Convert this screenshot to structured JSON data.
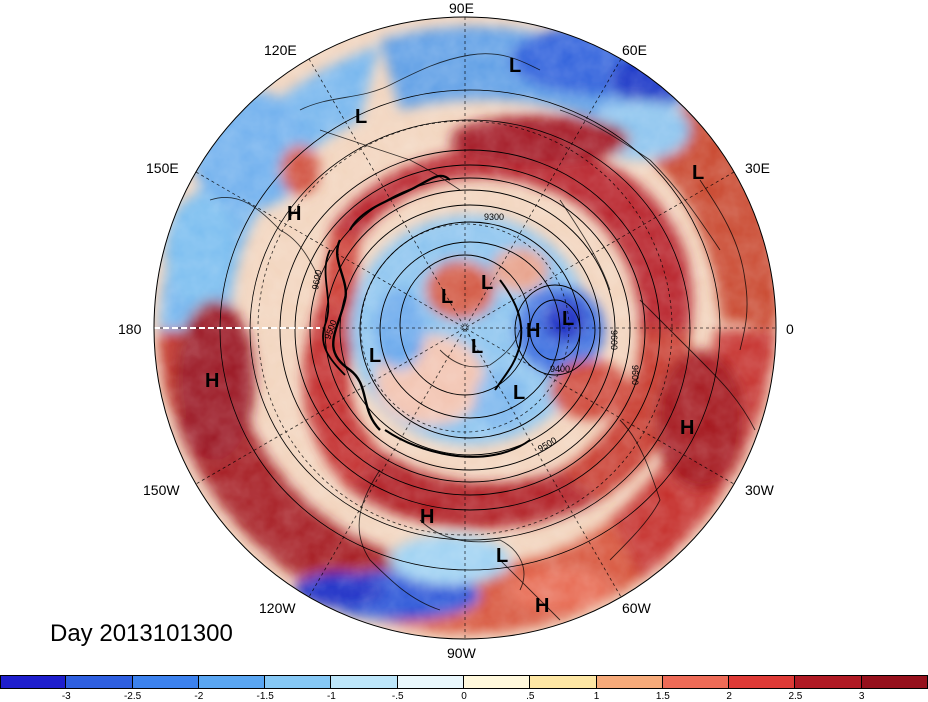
{
  "title": "Day 2013101300",
  "longitude_labels": {
    "lon_90E": "90E",
    "lon_60E": "60E",
    "lon_120E": "120E",
    "lon_30E": "30E",
    "lon_150E": "150E",
    "lon_0": "0",
    "lon_180": "180",
    "lon_30W": "30W",
    "lon_150W": "150W",
    "lon_60W": "60W",
    "lon_120W": "120W",
    "lon_90W": "90W"
  },
  "pressure_centers": [
    {
      "label": "L"
    },
    {
      "label": "L"
    },
    {
      "label": "L"
    },
    {
      "label": "H"
    },
    {
      "label": "H"
    },
    {
      "label": "L"
    },
    {
      "label": "L"
    },
    {
      "label": "H"
    },
    {
      "label": "L"
    },
    {
      "label": "L"
    },
    {
      "label": "L"
    },
    {
      "label": "L"
    },
    {
      "label": "H"
    },
    {
      "label": "H"
    },
    {
      "label": "L"
    },
    {
      "label": "H"
    }
  ],
  "contour_labels": [
    "9300",
    "9600",
    "9500",
    "9600",
    "9600",
    "9400",
    "9500"
  ],
  "colorbar": {
    "ticks": [
      "-3",
      "-2.5",
      "-2",
      "-1.5",
      "-1",
      "-.5",
      "0",
      ".5",
      "1",
      "1.5",
      "2",
      "2.5",
      "3"
    ],
    "colors": [
      "#1e1ecd",
      "#2e5fe0",
      "#3c82ee",
      "#5aa6f2",
      "#86c8f5",
      "#bde6fa",
      "#e9f7fc",
      "#fff8dc",
      "#fde6a4",
      "#f6aa7a",
      "#ee6b57",
      "#de3a36",
      "#b01a24",
      "#96101c"
    ]
  }
}
